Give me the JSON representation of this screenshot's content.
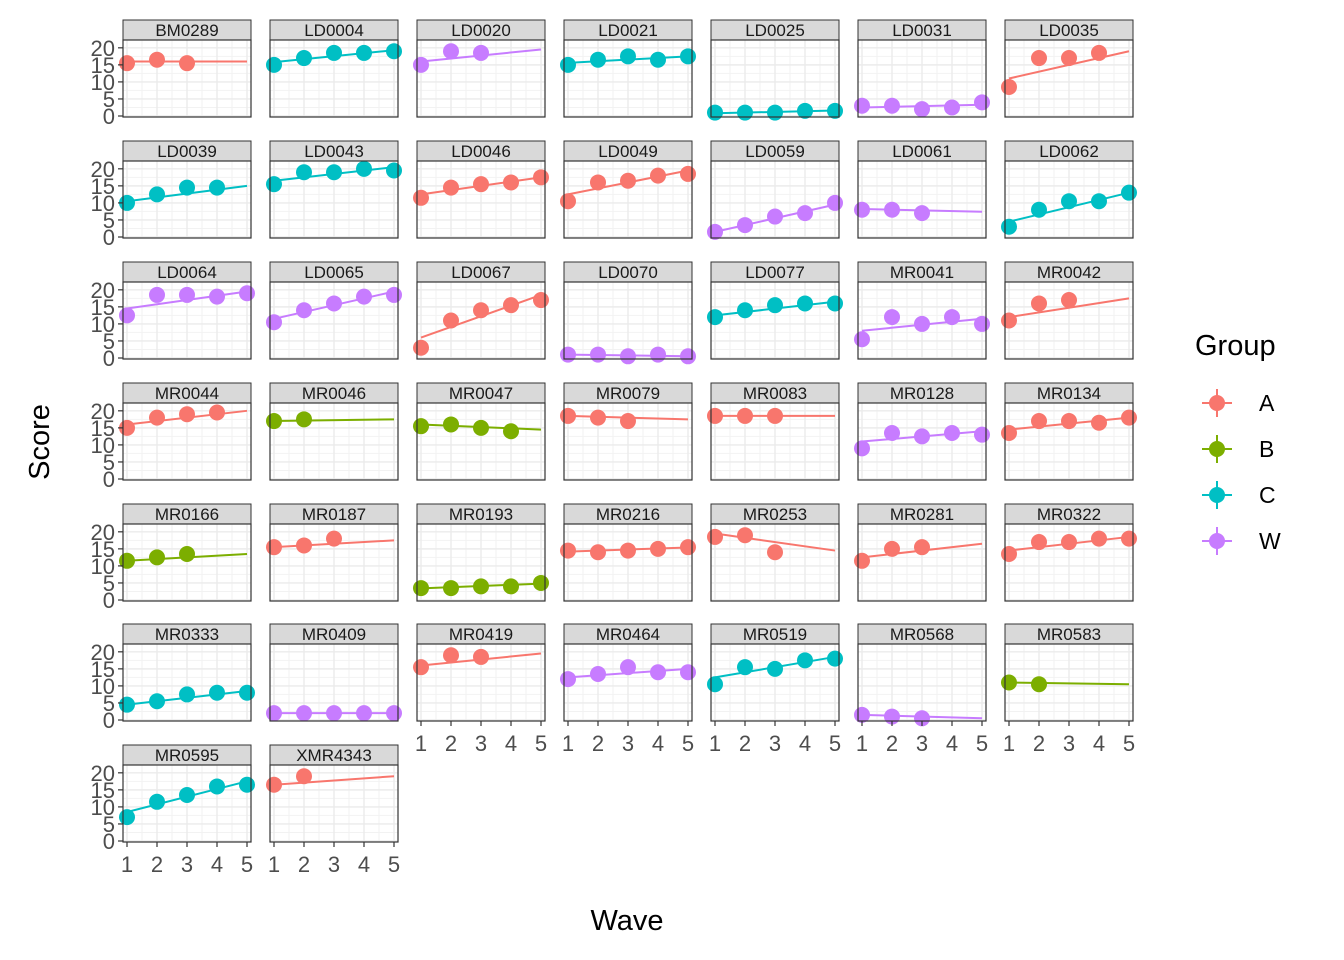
{
  "chart_data": {
    "type": "scatter",
    "xlabel": "Wave",
    "ylabel": "Score",
    "x_ticks": [
      "1",
      "2",
      "3",
      "4",
      "5"
    ],
    "y_ticks": [
      "0",
      "5",
      "10",
      "15",
      "20"
    ],
    "xlim": [
      1,
      5
    ],
    "ylim": [
      0,
      22
    ],
    "grid": true,
    "legend": {
      "title": "Group",
      "placement": "right",
      "entries": [
        {
          "label": "A",
          "color": "#F8766D"
        },
        {
          "label": "B",
          "color": "#7CAE00"
        },
        {
          "label": "C",
          "color": "#00BFC4"
        },
        {
          "label": "W",
          "color": "#C77CFF"
        }
      ]
    },
    "panels": [
      {
        "id": "BM0289",
        "group": "A",
        "x": [
          1,
          2,
          3
        ],
        "y": [
          15.5,
          16.5,
          15.5
        ],
        "fit": [
          16,
          16
        ]
      },
      {
        "id": "LD0004",
        "group": "C",
        "x": [
          1,
          2,
          3,
          4,
          5
        ],
        "y": [
          15,
          17,
          18.5,
          18.5,
          19
        ],
        "fit": [
          15.8,
          19.3
        ]
      },
      {
        "id": "LD0020",
        "group": "W",
        "x": [
          1,
          2,
          3
        ],
        "y": [
          15,
          19,
          18.5
        ],
        "fit": [
          16,
          19.5
        ]
      },
      {
        "id": "LD0021",
        "group": "C",
        "x": [
          1,
          2,
          3,
          4,
          5
        ],
        "y": [
          15,
          16.5,
          17.5,
          16.5,
          17.5
        ],
        "fit": [
          15.6,
          17.5
        ]
      },
      {
        "id": "LD0025",
        "group": "C",
        "x": [
          1,
          2,
          3,
          4,
          5
        ],
        "y": [
          1,
          1,
          1,
          1.5,
          1.5
        ],
        "fit": [
          0.8,
          1.6
        ]
      },
      {
        "id": "LD0031",
        "group": "W",
        "x": [
          1,
          2,
          3,
          4,
          5
        ],
        "y": [
          3,
          3,
          2,
          2.5,
          4
        ],
        "fit": [
          2.5,
          3.3
        ]
      },
      {
        "id": "LD0035",
        "group": "A",
        "x": [
          1,
          2,
          3,
          4
        ],
        "y": [
          8.5,
          17,
          17,
          18.5
        ],
        "fit": [
          11,
          19
        ]
      },
      {
        "id": "LD0039",
        "group": "C",
        "x": [
          1,
          2,
          3,
          4
        ],
        "y": [
          10,
          12.5,
          14.5,
          14.5
        ],
        "fit": [
          10.5,
          15
        ]
      },
      {
        "id": "LD0043",
        "group": "C",
        "x": [
          1,
          2,
          3,
          4,
          5
        ],
        "y": [
          15.5,
          19,
          19,
          20,
          19.5
        ],
        "fit": [
          16.5,
          20.5
        ]
      },
      {
        "id": "LD0046",
        "group": "A",
        "x": [
          1,
          2,
          3,
          4,
          5
        ],
        "y": [
          11.5,
          14.5,
          15.5,
          16,
          17.5
        ],
        "fit": [
          12.5,
          17.5
        ]
      },
      {
        "id": "LD0049",
        "group": "A",
        "x": [
          1,
          2,
          3,
          4,
          5
        ],
        "y": [
          10.5,
          16,
          16.5,
          18,
          18.5
        ],
        "fit": [
          12.5,
          19.5
        ]
      },
      {
        "id": "LD0059",
        "group": "W",
        "x": [
          1,
          2,
          3,
          4,
          5
        ],
        "y": [
          1.5,
          3.5,
          6,
          7,
          10
        ],
        "fit": [
          1.5,
          9.5
        ]
      },
      {
        "id": "LD0061",
        "group": "W",
        "x": [
          1,
          2,
          3
        ],
        "y": [
          8,
          8,
          7
        ],
        "fit": [
          8.2,
          7.4
        ]
      },
      {
        "id": "LD0062",
        "group": "C",
        "x": [
          1,
          2,
          3,
          4,
          5
        ],
        "y": [
          3,
          8,
          10.5,
          10.5,
          13
        ],
        "fit": [
          4.5,
          13
        ]
      },
      {
        "id": "LD0064",
        "group": "W",
        "x": [
          1,
          2,
          3,
          4,
          5
        ],
        "y": [
          12.5,
          18.5,
          18.5,
          18,
          19
        ],
        "fit": [
          14.5,
          19.5
        ]
      },
      {
        "id": "LD0065",
        "group": "W",
        "x": [
          1,
          2,
          3,
          4,
          5
        ],
        "y": [
          10.5,
          14,
          16,
          18,
          18.5
        ],
        "fit": [
          11.5,
          19.5
        ]
      },
      {
        "id": "LD0067",
        "group": "A",
        "x": [
          1,
          2,
          3,
          4,
          5
        ],
        "y": [
          3,
          11,
          14,
          15.5,
          17
        ],
        "fit": [
          6,
          18.5
        ]
      },
      {
        "id": "LD0070",
        "group": "W",
        "x": [
          1,
          2,
          3,
          4,
          5
        ],
        "y": [
          1,
          1,
          0.5,
          1,
          0.5
        ],
        "fit": [
          1,
          0.5
        ]
      },
      {
        "id": "LD0077",
        "group": "C",
        "x": [
          1,
          2,
          3,
          4,
          5
        ],
        "y": [
          12,
          14,
          15.5,
          16,
          16
        ],
        "fit": [
          12.5,
          16.5
        ]
      },
      {
        "id": "MR0041",
        "group": "W",
        "x": [
          1,
          2,
          3,
          4,
          5
        ],
        "y": [
          5.5,
          12,
          10,
          12,
          10
        ],
        "fit": [
          8,
          11.5
        ]
      },
      {
        "id": "MR0042",
        "group": "A",
        "x": [
          1,
          2,
          3
        ],
        "y": [
          11,
          16,
          17
        ],
        "fit": [
          12,
          17.5
        ]
      },
      {
        "id": "MR0044",
        "group": "A",
        "x": [
          1,
          2,
          3,
          4
        ],
        "y": [
          15,
          18,
          19,
          19.5
        ],
        "fit": [
          16,
          20
        ]
      },
      {
        "id": "MR0046",
        "group": "B",
        "x": [
          1,
          2
        ],
        "y": [
          17,
          17.5
        ],
        "fit": [
          17,
          17.5
        ]
      },
      {
        "id": "MR0047",
        "group": "B",
        "x": [
          1,
          2,
          3,
          4
        ],
        "y": [
          15.5,
          16,
          15,
          14
        ],
        "fit": [
          16,
          14.5
        ]
      },
      {
        "id": "MR0079",
        "group": "A",
        "x": [
          1,
          2,
          3
        ],
        "y": [
          18.5,
          18,
          17
        ],
        "fit": [
          18.5,
          17.5
        ]
      },
      {
        "id": "MR0083",
        "group": "A",
        "x": [
          1,
          2,
          3
        ],
        "y": [
          18.5,
          18.5,
          18.5
        ],
        "fit": [
          18.5,
          18.5
        ]
      },
      {
        "id": "MR0128",
        "group": "W",
        "x": [
          1,
          2,
          3,
          4,
          5
        ],
        "y": [
          9,
          13.5,
          12.5,
          13.5,
          13
        ],
        "fit": [
          11,
          14
        ]
      },
      {
        "id": "MR0134",
        "group": "A",
        "x": [
          1,
          2,
          3,
          4,
          5
        ],
        "y": [
          13.5,
          17,
          17,
          16.5,
          18
        ],
        "fit": [
          14.5,
          18
        ]
      },
      {
        "id": "MR0166",
        "group": "B",
        "x": [
          1,
          2,
          3
        ],
        "y": [
          11.5,
          12.5,
          13.5
        ],
        "fit": [
          11.5,
          13.5
        ]
      },
      {
        "id": "MR0187",
        "group": "A",
        "x": [
          1,
          2,
          3
        ],
        "y": [
          15.5,
          16,
          18
        ],
        "fit": [
          15.5,
          17.5
        ]
      },
      {
        "id": "MR0193",
        "group": "B",
        "x": [
          1,
          2,
          3,
          4,
          5
        ],
        "y": [
          3.5,
          3.5,
          4,
          4,
          5
        ],
        "fit": [
          3.4,
          4.8
        ]
      },
      {
        "id": "MR0216",
        "group": "A",
        "x": [
          1,
          2,
          3,
          4,
          5
        ],
        "y": [
          14.5,
          14,
          14.5,
          15,
          15.5
        ],
        "fit": [
          14.2,
          15.4
        ]
      },
      {
        "id": "MR0253",
        "group": "A",
        "x": [
          1,
          2,
          3
        ],
        "y": [
          18.5,
          19,
          14
        ],
        "fit": [
          19.5,
          14.5
        ]
      },
      {
        "id": "MR0281",
        "group": "A",
        "x": [
          1,
          2,
          3
        ],
        "y": [
          11.5,
          15,
          15.5
        ],
        "fit": [
          12.5,
          16.5
        ]
      },
      {
        "id": "MR0322",
        "group": "A",
        "x": [
          1,
          2,
          3,
          4,
          5
        ],
        "y": [
          13.5,
          17,
          17,
          18,
          18
        ],
        "fit": [
          14.5,
          18.5
        ]
      },
      {
        "id": "MR0333",
        "group": "C",
        "x": [
          1,
          2,
          3,
          4,
          5
        ],
        "y": [
          4.5,
          5.5,
          7.5,
          8,
          8
        ],
        "fit": [
          4.5,
          8.5
        ]
      },
      {
        "id": "MR0409",
        "group": "W",
        "x": [
          1,
          2,
          3,
          4,
          5
        ],
        "y": [
          2,
          2,
          2,
          2,
          2
        ],
        "fit": [
          2,
          2
        ]
      },
      {
        "id": "MR0419",
        "group": "A",
        "x": [
          1,
          2,
          3
        ],
        "y": [
          15.5,
          19,
          18.5
        ],
        "fit": [
          16,
          19.5
        ]
      },
      {
        "id": "MR0464",
        "group": "W",
        "x": [
          1,
          2,
          3,
          4,
          5
        ],
        "y": [
          12,
          13.5,
          15.5,
          14,
          14
        ],
        "fit": [
          12.5,
          15
        ]
      },
      {
        "id": "MR0519",
        "group": "C",
        "x": [
          1,
          2,
          3,
          4,
          5
        ],
        "y": [
          10.5,
          15.5,
          15,
          17.5,
          18
        ],
        "fit": [
          12.5,
          18.5
        ]
      },
      {
        "id": "MR0568",
        "group": "W",
        "x": [
          1,
          2,
          3
        ],
        "y": [
          1.5,
          1,
          0.5
        ],
        "fit": [
          1.5,
          0.5
        ]
      },
      {
        "id": "MR0583",
        "group": "B",
        "x": [
          1,
          2
        ],
        "y": [
          11,
          10.5
        ],
        "fit": [
          11,
          10.5
        ]
      },
      {
        "id": "MR0595",
        "group": "C",
        "x": [
          1,
          2,
          3,
          4,
          5
        ],
        "y": [
          7,
          11.5,
          13.5,
          16,
          16.5
        ],
        "fit": [
          8.5,
          17.5
        ]
      },
      {
        "id": "XMR4343",
        "group": "A",
        "x": [
          1,
          2
        ],
        "y": [
          16.5,
          19
        ],
        "fit": [
          16.5,
          19
        ]
      }
    ]
  }
}
